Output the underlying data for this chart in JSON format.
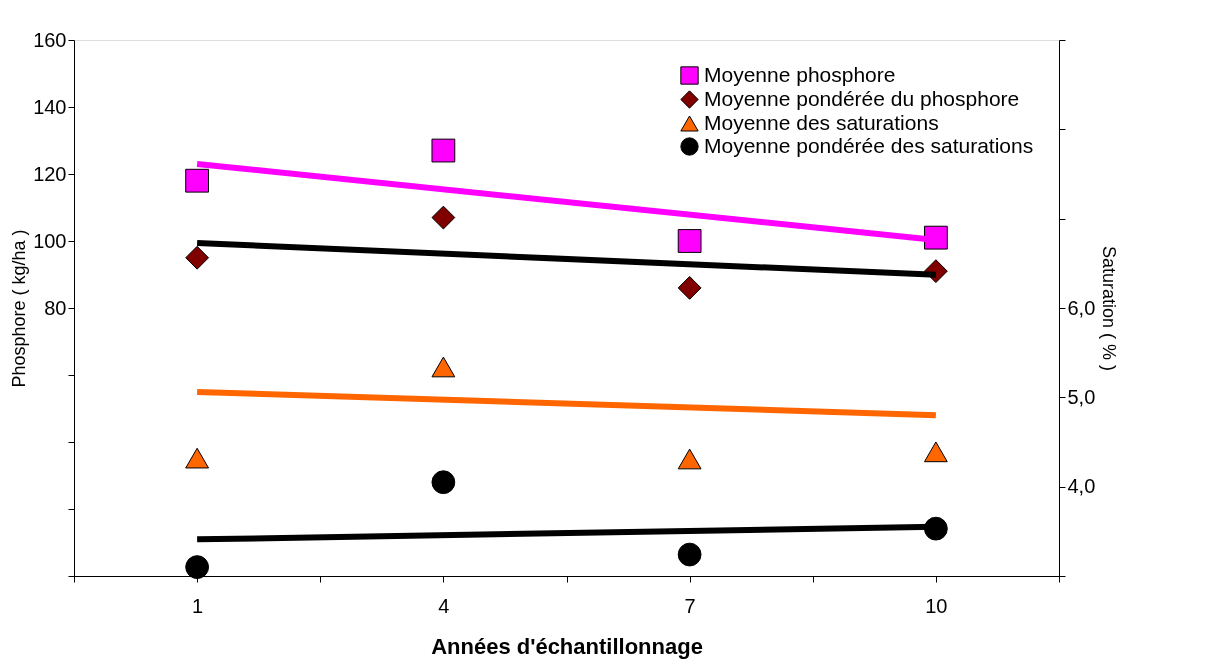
{
  "chart_data": {
    "type": "scatter",
    "xlabel": "Années d'échantillonnage",
    "ylabel": "Phosphore ( kg/ha )",
    "y2label": "Saturation  ( % )",
    "xlim": [
      -0.5,
      11.5
    ],
    "xticks": [
      {
        "value": -0.5,
        "label": null
      },
      1,
      {
        "value": 2.5,
        "label": null
      },
      4,
      {
        "value": 5.5,
        "label": null
      },
      7,
      {
        "value": 8.5,
        "label": null
      },
      10,
      {
        "value": 11.5,
        "label": null
      }
    ],
    "ylim": [
      0,
      160
    ],
    "yticks": [
      {
        "value": 0,
        "label": null
      },
      {
        "value": 20,
        "label": null
      },
      {
        "value": 40,
        "label": null
      },
      {
        "value": 60,
        "label": null
      },
      80,
      100,
      120,
      140,
      160
    ],
    "y2lim": [
      3,
      9
    ],
    "y2ticks": [
      {
        "value": 3,
        "label": null
      },
      {
        "value": 4,
        "label": "4,0"
      },
      {
        "value": 5,
        "label": "5,0"
      },
      {
        "value": 6,
        "label": "6,0"
      },
      {
        "value": 7,
        "label": null
      },
      {
        "value": 8,
        "label": null
      },
      {
        "value": 9,
        "label": null
      }
    ],
    "grid": false,
    "legend": "top right",
    "series": [
      {
        "name": "Moyenne phosphore",
        "marker": "square",
        "color": "#ff00ff",
        "x": [
          1,
          4,
          7,
          10
        ],
        "values": [
          118,
          127,
          100,
          101
        ]
      },
      {
        "name": "Moyenne pondérée du phosphore",
        "marker": "diamond",
        "color": "#800000",
        "x": [
          1,
          4,
          7,
          10
        ],
        "values": [
          95,
          107,
          86,
          91
        ]
      },
      {
        "name": "Moyenne des saturations",
        "marker": "triangle",
        "color": "#ff6600",
        "axis": "y2",
        "x": [
          1,
          4,
          7,
          10
        ],
        "values": [
          4.32,
          5.34,
          4.31,
          4.39
        ]
      },
      {
        "name": "Moyenne pondérée des saturations",
        "marker": "circle",
        "color": "#000000",
        "axis": "y2",
        "x": [
          1,
          4,
          7,
          10
        ],
        "values": [
          3.1,
          4.05,
          3.24,
          3.53
        ]
      },
      {
        "type": "line",
        "color": "#ff00ff",
        "x": [
          1,
          10
        ],
        "values": [
          123,
          100.3
        ]
      },
      {
        "type": "line",
        "color": "#000000",
        "x": [
          1,
          10
        ],
        "values": [
          99.4,
          89.9
        ]
      },
      {
        "type": "line",
        "color": "#ff6600",
        "axis": "y2",
        "x": [
          1,
          10
        ],
        "values": [
          5.06,
          4.8
        ]
      },
      {
        "type": "line",
        "color": "#000000",
        "axis": "y2",
        "x": [
          1,
          10
        ],
        "values": [
          3.41,
          3.55
        ]
      }
    ]
  }
}
